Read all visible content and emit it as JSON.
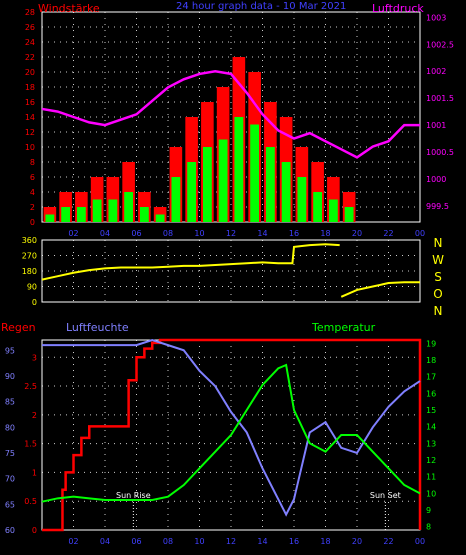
{
  "colors": {
    "background": "#000000",
    "wind": "#ff0000",
    "wind_gust": "#ff0000",
    "wind_mean": "#00ff00",
    "pressure": "#ff00ff",
    "direction": "#ffff00",
    "rain": "#ff0000",
    "humidity": "#8080ff",
    "temperature": "#00ff00",
    "grid": "#ffffff",
    "top_axis_left": "#ff0000",
    "top_axis_right": "#ff00ff",
    "title": "#4040ff"
  },
  "chart_data": [
    {
      "type": "bar",
      "title": "24 hour graph data - 10 Mar 2021",
      "left_label": "Windstärke",
      "right_label": "Luftdruck",
      "x_ticks": [
        "02",
        "04",
        "06",
        "08",
        "10",
        "12",
        "14",
        "16",
        "18",
        "20",
        "22",
        "00"
      ],
      "left_ticks": [
        "0",
        "2",
        "4",
        "6",
        "8",
        "10",
        "12",
        "14",
        "16",
        "18",
        "20",
        "22",
        "24",
        "26",
        "28"
      ],
      "right_ticks": [
        "999.5",
        "1000",
        "1000.5",
        "1001",
        "1001.5",
        "1002",
        "1002.5",
        "1003"
      ],
      "ylim_left": [
        0,
        28
      ],
      "ylim_right": [
        999.2,
        1003.1
      ],
      "xlim_hours": [
        0,
        24
      ],
      "series": [
        {
          "name": "Windstärke",
          "type": "bar",
          "x_hours": [
            0.5,
            1.5,
            2.5,
            3.5,
            4.5,
            5.5,
            6.5,
            7.5,
            8.5,
            9.5,
            10.5,
            11.5,
            12.5,
            13.5,
            14.5,
            15.5,
            16.5,
            17.5,
            18.5,
            19.5,
            20.5,
            21.5,
            22.5,
            23.5
          ],
          "gust": [
            2,
            4,
            4,
            6,
            6,
            8,
            4,
            2,
            10,
            14,
            16,
            18,
            22,
            20,
            16,
            14,
            10,
            8,
            6,
            4,
            0,
            0,
            0,
            0
          ],
          "mean": [
            1,
            2,
            2,
            3,
            3,
            4,
            2,
            1,
            6,
            8,
            10,
            11,
            14,
            13,
            10,
            8,
            6,
            4,
            3,
            2,
            0,
            0,
            0,
            0
          ]
        },
        {
          "name": "Luftdruck",
          "type": "line",
          "x_hours": [
            0,
            1,
            2,
            3,
            4,
            5,
            6,
            7,
            8,
            9,
            10,
            11,
            12,
            13,
            14,
            15,
            16,
            17,
            18,
            19,
            20,
            21,
            22,
            23,
            24
          ],
          "values": [
            1001.3,
            1001.25,
            1001.15,
            1001.05,
            1001.0,
            1001.1,
            1001.2,
            1001.45,
            1001.7,
            1001.85,
            1001.95,
            1002.0,
            1001.95,
            1001.6,
            1001.2,
            1000.9,
            1000.75,
            1000.85,
            1000.7,
            1000.55,
            1000.4,
            1000.6,
            1000.7,
            1001.0,
            1001.0
          ]
        }
      ]
    },
    {
      "type": "line",
      "right_label": "N W S O N",
      "left_ticks": [
        "0",
        "90",
        "180",
        "270",
        "360"
      ],
      "ylim": [
        0,
        360
      ],
      "series": [
        {
          "name": "Windrichtung",
          "x_hours": [
            0,
            1,
            2,
            3,
            4,
            5,
            6,
            7,
            8,
            9,
            10,
            11,
            12,
            13,
            14,
            15,
            15.9,
            16,
            17,
            18,
            18.9,
            19,
            20,
            21,
            22,
            23,
            24
          ],
          "values": [
            130,
            150,
            170,
            185,
            195,
            200,
            200,
            200,
            205,
            210,
            210,
            215,
            220,
            225,
            230,
            225,
            225,
            320,
            330,
            335,
            330,
            30,
            70,
            90,
            110,
            115,
            115
          ]
        }
      ]
    },
    {
      "type": "line",
      "rain_label": "Regen",
      "humidity_label": "Luftfeuchte",
      "temperature_label": "Temperatur",
      "rain_ticks": [
        "0",
        "0.5",
        "1",
        "1.5",
        "2",
        "2.5",
        "3"
      ],
      "humidity_ticks": [
        "60",
        "65",
        "70",
        "75",
        "80",
        "85",
        "90",
        "95"
      ],
      "temperature_ticks": [
        "8",
        "9",
        "10",
        "11",
        "12",
        "13",
        "14",
        "15",
        "16",
        "17",
        "18",
        "19"
      ],
      "x_ticks": [
        "02",
        "04",
        "06",
        "08",
        "10",
        "12",
        "14",
        "16",
        "18",
        "20",
        "22",
        "00"
      ],
      "ylim_rain": [
        0,
        3.3
      ],
      "ylim_humidity": [
        60,
        97
      ],
      "ylim_temperature": [
        7.8,
        19.2
      ],
      "annotations": [
        {
          "text": "Sun Rise",
          "x_hour": 5.8
        },
        {
          "text": "Sun Set",
          "x_hour": 21.8
        }
      ],
      "series": [
        {
          "name": "Regen",
          "x_hours": [
            0,
            1,
            1.3,
            1.5,
            2.0,
            2.5,
            3.0,
            4.0,
            4.5,
            5.0,
            5.5,
            6.0,
            6.5,
            7.0,
            7.5,
            8,
            10,
            12,
            14,
            16,
            18,
            20,
            22,
            24
          ],
          "values": [
            0,
            0,
            0.7,
            1.0,
            1.3,
            1.6,
            1.8,
            1.8,
            1.8,
            1.8,
            2.6,
            3.0,
            3.15,
            3.25,
            3.3,
            3.3,
            3.3,
            3.3,
            3.3,
            3.3,
            3.3,
            3.3,
            3.3,
            3.3
          ]
        },
        {
          "name": "Luftfeuchte",
          "x_hours": [
            0,
            2,
            4,
            5,
            6,
            7,
            8,
            9,
            10,
            11,
            12,
            13,
            14,
            15,
            15.5,
            16,
            17,
            18,
            19,
            20,
            21,
            22,
            23,
            24
          ],
          "values": [
            96,
            96,
            96,
            96,
            96,
            97,
            96,
            95,
            91,
            88,
            83,
            79,
            72,
            66,
            63,
            66,
            79,
            81,
            76,
            75,
            80,
            84,
            87,
            89
          ]
        },
        {
          "name": "Temperatur",
          "x_hours": [
            0,
            1,
            2,
            3,
            4,
            5,
            6,
            7,
            8,
            9,
            10,
            11,
            12,
            13,
            14,
            15,
            15.5,
            16,
            17,
            18,
            19,
            20,
            21,
            22,
            23,
            24
          ],
          "values": [
            9.5,
            9.7,
            9.8,
            9.7,
            9.6,
            9.6,
            9.6,
            9.6,
            9.8,
            10.5,
            11.5,
            12.5,
            13.5,
            15.0,
            16.5,
            17.5,
            17.7,
            15.0,
            13.0,
            12.5,
            13.5,
            13.5,
            12.5,
            11.5,
            10.5,
            10.0
          ]
        }
      ]
    }
  ]
}
